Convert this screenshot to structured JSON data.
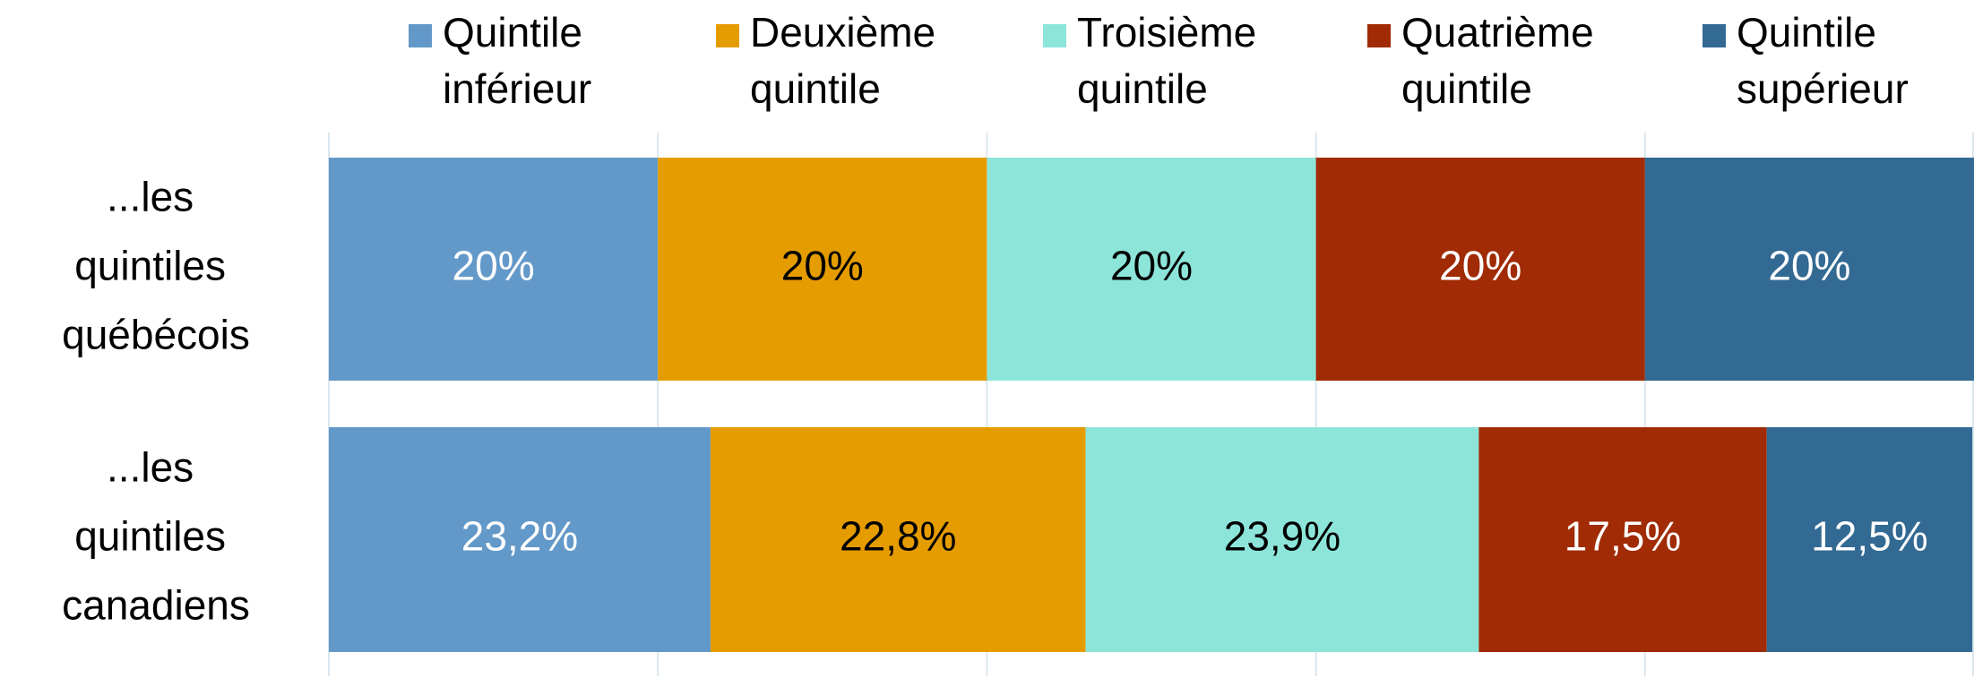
{
  "chart_data": {
    "type": "bar",
    "orientation": "horizontal",
    "stacked": true,
    "categories": [
      "...les quintiles québécois",
      "...les quintiles canadiens"
    ],
    "series": [
      {
        "name": "Quintile inférieur",
        "color": "#6399c9",
        "label_color": "#ffffff",
        "values": [
          20,
          23.2
        ],
        "value_labels": [
          "20%",
          "23,2%"
        ]
      },
      {
        "name": "Deuxième quintile",
        "color": "#e59c00",
        "label_color": "#000000",
        "values": [
          20,
          22.8
        ],
        "value_labels": [
          "20%",
          "22,8%"
        ]
      },
      {
        "name": "Troisième quintile",
        "color": "#8de5da",
        "label_color": "#000000",
        "values": [
          20,
          23.9
        ],
        "value_labels": [
          "20%",
          "23,9%"
        ]
      },
      {
        "name": "Quatrième quintile",
        "color": "#a02b04",
        "label_color": "#ffffff",
        "values": [
          20,
          17.5
        ],
        "value_labels": [
          "20%",
          "17,5%"
        ]
      },
      {
        "name": "Quintile supérieur",
        "color": "#336a93",
        "label_color": "#ffffff",
        "values": [
          20,
          12.5
        ],
        "value_labels": [
          "20%",
          "12,5%"
        ]
      }
    ],
    "xlim": [
      0,
      100
    ],
    "xticks": [
      0,
      20,
      40,
      60,
      80,
      100
    ],
    "grid": true,
    "legend": "top"
  }
}
